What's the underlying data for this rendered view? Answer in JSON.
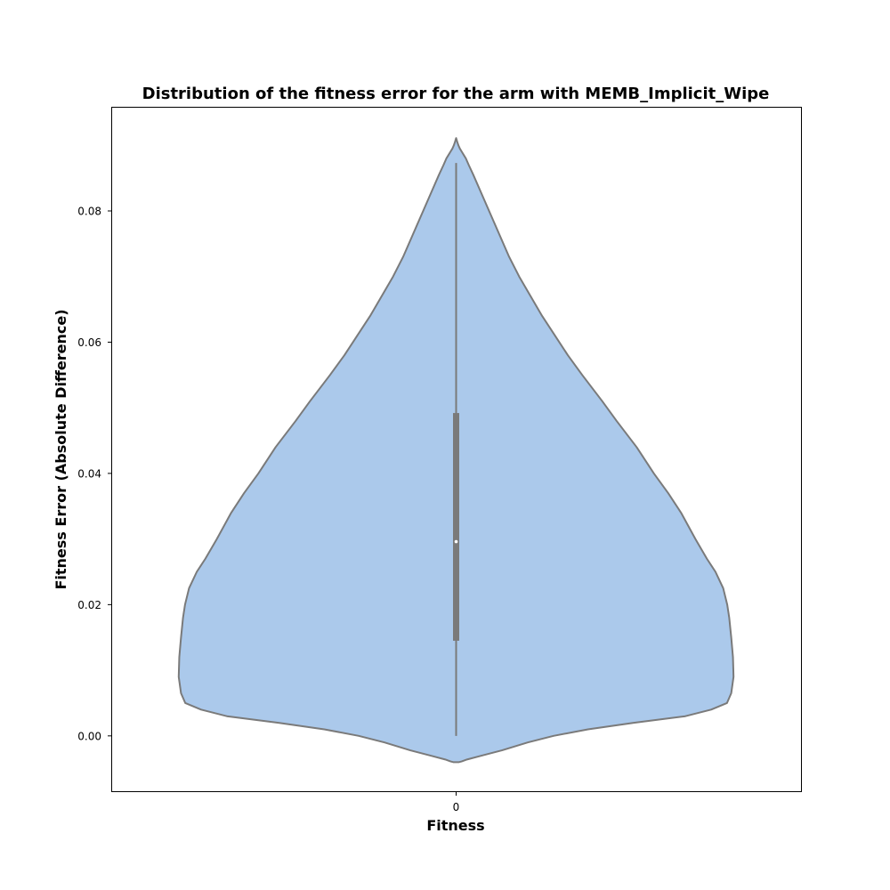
{
  "chart_data": {
    "type": "violin",
    "title": "Distribution of the fitness error for the arm with MEMB_Implicit_Wipe",
    "xlabel": "Fitness",
    "ylabel": "Fitness Error (Absolute Difference)",
    "categories": [
      "0"
    ],
    "ylim": [
      -0.0085,
      0.0958
    ],
    "yticks": [
      0.0,
      0.02,
      0.04,
      0.06,
      0.08
    ],
    "ytick_labels": [
      "0.00",
      "0.02",
      "0.04",
      "0.06",
      "0.08"
    ],
    "grid": false,
    "colors": {
      "fill": "#abc9eb",
      "outline": "#7a7a7a",
      "box": "#7a7a7a",
      "median_dot": "#ffffff"
    },
    "stats": {
      "min": 0.0,
      "q1": 0.0145,
      "median": 0.0296,
      "q3": 0.0492,
      "max": 0.0873
    },
    "density_profile": {
      "y": [
        -0.004,
        -0.0039,
        -0.0036,
        -0.003,
        -0.0022,
        -0.001,
        0.0,
        0.001,
        0.002,
        0.003,
        0.004,
        0.005,
        0.0065,
        0.009,
        0.012,
        0.015,
        0.018,
        0.02,
        0.0225,
        0.025,
        0.027,
        0.03,
        0.034,
        0.037,
        0.04,
        0.044,
        0.048,
        0.051,
        0.055,
        0.058,
        0.061,
        0.064,
        0.067,
        0.07,
        0.073,
        0.076,
        0.079,
        0.082,
        0.084,
        0.0855,
        0.087,
        0.088,
        0.0885,
        0.089,
        0.0895,
        0.09,
        0.0905,
        0.0909,
        0.0911
      ],
      "half_width": [
        0.01,
        0.019,
        0.038,
        0.09,
        0.16,
        0.25,
        0.34,
        0.46,
        0.62,
        0.8,
        0.89,
        0.945,
        0.96,
        0.968,
        0.966,
        0.96,
        0.953,
        0.946,
        0.932,
        0.905,
        0.875,
        0.835,
        0.785,
        0.74,
        0.69,
        0.63,
        0.56,
        0.51,
        0.44,
        0.39,
        0.345,
        0.3,
        0.26,
        0.22,
        0.185,
        0.155,
        0.125,
        0.095,
        0.075,
        0.06,
        0.044,
        0.034,
        0.027,
        0.02,
        0.013,
        0.008,
        0.004,
        0.0015,
        0.0
      ]
    }
  }
}
